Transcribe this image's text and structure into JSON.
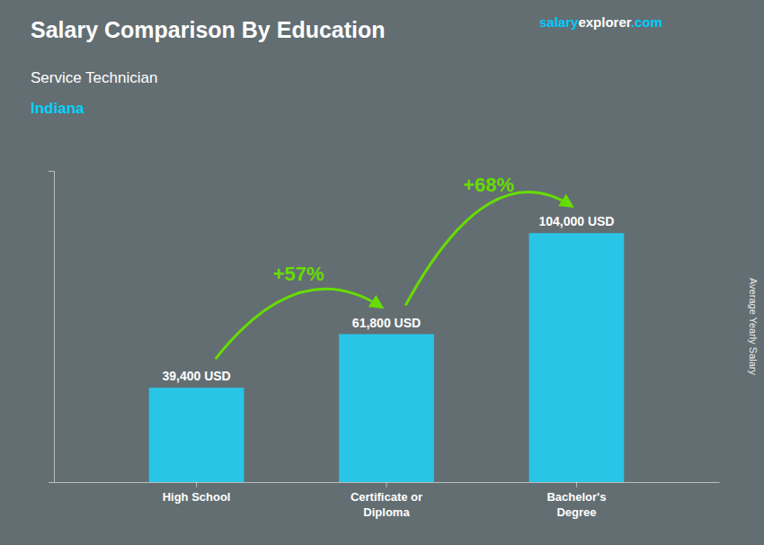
{
  "chart_data": {
    "type": "bar",
    "title": "Salary Comparison By Education",
    "subtitle": [
      "Service Technician",
      "Indiana"
    ],
    "ylabel": "Average Yearly Salary",
    "categories": [
      "High School",
      "Certificate or\nDiploma",
      "Bachelor's\nDegree"
    ],
    "values": [
      39400,
      61800,
      104000
    ],
    "value_labels": [
      "39,400 USD",
      "61,800 USD",
      "104,000 USD"
    ],
    "data_labels": true,
    "color": "#29c5e6",
    "ylim": [
      0,
      130000
    ],
    "grid": false,
    "tick_labels": "x",
    "annotations": [
      {
        "text": "+57%",
        "color": "#66dd00"
      },
      {
        "text": "+68%",
        "color": "#66dd00"
      },
      {
        "text": "salary",
        "color": "#00ccff"
      },
      {
        "text": "explorer",
        "color": "#ffffff"
      },
      {
        "text": ".com",
        "color": "#00ccff"
      }
    ]
  }
}
